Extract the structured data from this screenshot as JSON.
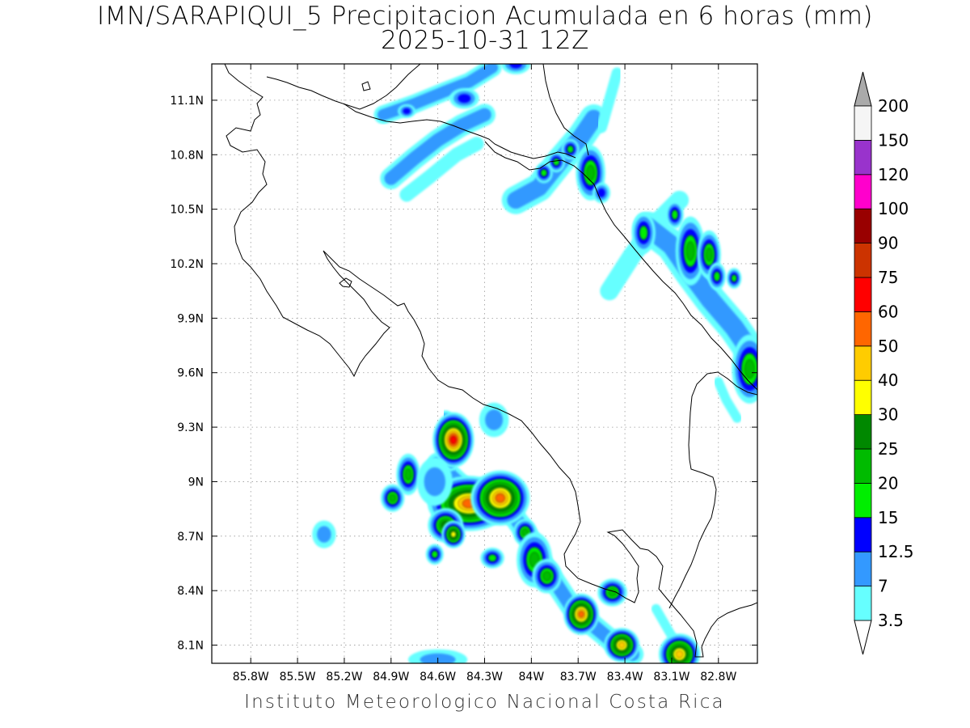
{
  "title": {
    "line1": "IMN/SARAPIQUI_5 Precipitacion Acumulada en 6 horas (mm)",
    "line2": "2025-10-31 12Z"
  },
  "footer": "Instituto Meteorologico Nacional Costa Rica",
  "map": {
    "lon_range": [
      -86.05,
      -82.55
    ],
    "lat_range": [
      8.0,
      11.3
    ],
    "lon_ticks": [
      {
        "value": -85.8,
        "label": "85.8W"
      },
      {
        "value": -85.5,
        "label": "85.5W"
      },
      {
        "value": -85.2,
        "label": "85.2W"
      },
      {
        "value": -84.9,
        "label": "84.9W"
      },
      {
        "value": -84.6,
        "label": "84.6W"
      },
      {
        "value": -84.3,
        "label": "84.3W"
      },
      {
        "value": -84.0,
        "label": "84W"
      },
      {
        "value": -83.7,
        "label": "83.7W"
      },
      {
        "value": -83.4,
        "label": "83.4W"
      },
      {
        "value": -83.1,
        "label": "83.1W"
      },
      {
        "value": -82.8,
        "label": "82.8W"
      }
    ],
    "lat_ticks": [
      {
        "value": 8.1,
        "label": "8.1N"
      },
      {
        "value": 8.4,
        "label": "8.4N"
      },
      {
        "value": 8.7,
        "label": "8.7N"
      },
      {
        "value": 9.0,
        "label": "9N"
      },
      {
        "value": 9.3,
        "label": "9.3N"
      },
      {
        "value": 9.6,
        "label": "9.6N"
      },
      {
        "value": 9.9,
        "label": "9.9N"
      },
      {
        "value": 10.2,
        "label": "10.2N"
      },
      {
        "value": 10.5,
        "label": "10.5N"
      },
      {
        "value": 10.8,
        "label": "10.8N"
      },
      {
        "value": 11.1,
        "label": "11.1N"
      }
    ],
    "grid": true
  },
  "colorbar": {
    "labels": [
      "3.5",
      "7",
      "12.5",
      "15",
      "20",
      "25",
      "30",
      "40",
      "50",
      "60",
      "75",
      "90",
      "100",
      "120",
      "150",
      "200"
    ],
    "colors": [
      "#66ffff",
      "#3399ff",
      "#0000ff",
      "#00ee00",
      "#00bb00",
      "#008800",
      "#ffff00",
      "#ffcc00",
      "#ff6600",
      "#ff0000",
      "#cc3300",
      "#990000",
      "#ff00cc",
      "#9933cc",
      "#f5f5f5"
    ],
    "below_color": "#ffffff",
    "above_color": "#aaaaaa"
  },
  "precip_cells": [
    {
      "lon": -84.4,
      "lat": 8.88,
      "rx_deg": 0.14,
      "ry_deg": 0.08,
      "value": 55
    },
    {
      "lon": -84.2,
      "lat": 8.91,
      "rx_deg": 0.1,
      "ry_deg": 0.08,
      "value": 50
    },
    {
      "lon": -84.5,
      "lat": 9.23,
      "rx_deg": 0.07,
      "ry_deg": 0.08,
      "value": 62
    },
    {
      "lon": -83.68,
      "lat": 8.27,
      "rx_deg": 0.06,
      "ry_deg": 0.06,
      "value": 55
    },
    {
      "lon": -83.42,
      "lat": 8.1,
      "rx_deg": 0.06,
      "ry_deg": 0.05,
      "value": 45
    },
    {
      "lon": -83.05,
      "lat": 8.05,
      "rx_deg": 0.07,
      "ry_deg": 0.06,
      "value": 40
    },
    {
      "lon": -84.55,
      "lat": 8.76,
      "rx_deg": 0.06,
      "ry_deg": 0.05,
      "value": 25
    },
    {
      "lon": -84.5,
      "lat": 8.71,
      "rx_deg": 0.04,
      "ry_deg": 0.04,
      "value": 30
    },
    {
      "lon": -84.04,
      "lat": 8.72,
      "rx_deg": 0.04,
      "ry_deg": 0.04,
      "value": 20
    },
    {
      "lon": -83.98,
      "lat": 8.57,
      "rx_deg": 0.06,
      "ry_deg": 0.08,
      "value": 22
    },
    {
      "lon": -83.9,
      "lat": 8.48,
      "rx_deg": 0.05,
      "ry_deg": 0.05,
      "value": 20
    },
    {
      "lon": -84.79,
      "lat": 9.04,
      "rx_deg": 0.04,
      "ry_deg": 0.06,
      "value": 21
    },
    {
      "lon": -84.89,
      "lat": 8.91,
      "rx_deg": 0.04,
      "ry_deg": 0.04,
      "value": 20
    },
    {
      "lon": -84.61,
      "lat": 9.01,
      "rx_deg": 0.04,
      "ry_deg": 0.04,
      "value": 16
    },
    {
      "lon": -84.25,
      "lat": 8.58,
      "rx_deg": 0.04,
      "ry_deg": 0.03,
      "value": 16
    },
    {
      "lon": -84.62,
      "lat": 8.6,
      "rx_deg": 0.03,
      "ry_deg": 0.03,
      "value": 16
    },
    {
      "lon": -84.24,
      "lat": 9.34,
      "rx_deg": 0.05,
      "ry_deg": 0.05,
      "value": 10
    },
    {
      "lon": -83.48,
      "lat": 8.39,
      "rx_deg": 0.05,
      "ry_deg": 0.04,
      "value": 20
    },
    {
      "lon": -83.62,
      "lat": 10.7,
      "rx_deg": 0.05,
      "ry_deg": 0.08,
      "value": 22
    },
    {
      "lon": -82.98,
      "lat": 10.27,
      "rx_deg": 0.05,
      "ry_deg": 0.1,
      "value": 21
    },
    {
      "lon": -82.86,
      "lat": 10.25,
      "rx_deg": 0.04,
      "ry_deg": 0.07,
      "value": 21
    },
    {
      "lon": -82.6,
      "lat": 9.62,
      "rx_deg": 0.06,
      "ry_deg": 0.1,
      "value": 22
    },
    {
      "lon": -83.28,
      "lat": 10.37,
      "rx_deg": 0.04,
      "ry_deg": 0.06,
      "value": 18
    },
    {
      "lon": -83.08,
      "lat": 10.47,
      "rx_deg": 0.03,
      "ry_deg": 0.04,
      "value": 16
    },
    {
      "lon": -82.81,
      "lat": 10.13,
      "rx_deg": 0.03,
      "ry_deg": 0.04,
      "value": 16
    },
    {
      "lon": -82.7,
      "lat": 10.12,
      "rx_deg": 0.025,
      "ry_deg": 0.03,
      "value": 16
    },
    {
      "lon": -83.75,
      "lat": 10.83,
      "rx_deg": 0.03,
      "ry_deg": 0.03,
      "value": 16
    },
    {
      "lon": -83.84,
      "lat": 10.76,
      "rx_deg": 0.03,
      "ry_deg": 0.03,
      "value": 16
    },
    {
      "lon": -83.92,
      "lat": 10.7,
      "rx_deg": 0.03,
      "ry_deg": 0.03,
      "value": 16
    },
    {
      "lon": -83.55,
      "lat": 10.59,
      "rx_deg": 0.03,
      "ry_deg": 0.03,
      "value": 14
    },
    {
      "lon": -84.43,
      "lat": 11.11,
      "rx_deg": 0.05,
      "ry_deg": 0.03,
      "value": 13
    },
    {
      "lon": -84.1,
      "lat": 11.3,
      "rx_deg": 0.05,
      "ry_deg": 0.03,
      "value": 13
    },
    {
      "lon": -84.8,
      "lat": 11.04,
      "rx_deg": 0.03,
      "ry_deg": 0.02,
      "value": 13
    },
    {
      "lon": -84.62,
      "lat": 9.0,
      "rx_deg": 0.06,
      "ry_deg": 0.07,
      "value": 8
    },
    {
      "lon": -85.33,
      "lat": 8.71,
      "rx_deg": 0.04,
      "ry_deg": 0.04,
      "value": 8
    },
    {
      "lon": -84.6,
      "lat": 8.02,
      "rx_deg": 0.1,
      "ry_deg": 0.03,
      "value": 10
    }
  ],
  "precip_bands": [
    {
      "path": [
        [
          -84.9,
          10.67
        ],
        [
          -84.75,
          10.78
        ],
        [
          -84.6,
          10.88
        ],
        [
          -84.45,
          10.96
        ],
        [
          -84.3,
          11.02
        ]
      ],
      "width_deg": 0.14,
      "value": 8
    },
    {
      "path": [
        [
          -84.8,
          10.58
        ],
        [
          -84.65,
          10.68
        ],
        [
          -84.48,
          10.8
        ],
        [
          -84.35,
          10.86
        ]
      ],
      "width_deg": 0.09,
      "value": 5
    },
    {
      "path": [
        [
          -84.95,
          11.02
        ],
        [
          -84.75,
          11.08
        ],
        [
          -84.55,
          11.15
        ],
        [
          -84.4,
          11.2
        ],
        [
          -84.25,
          11.28
        ]
      ],
      "width_deg": 0.12,
      "value": 8
    },
    {
      "path": [
        [
          -84.1,
          10.55
        ],
        [
          -83.95,
          10.62
        ],
        [
          -83.8,
          10.78
        ],
        [
          -83.68,
          10.9
        ],
        [
          -83.6,
          11.0
        ]
      ],
      "width_deg": 0.18,
      "value": 8
    },
    {
      "path": [
        [
          -83.5,
          10.05
        ],
        [
          -83.35,
          10.25
        ],
        [
          -83.2,
          10.42
        ],
        [
          -83.05,
          10.55
        ]
      ],
      "width_deg": 0.12,
      "value": 6
    },
    {
      "path": [
        [
          -83.25,
          10.4
        ],
        [
          -83.1,
          10.3
        ],
        [
          -82.98,
          10.15
        ],
        [
          -82.85,
          10.0
        ],
        [
          -82.7,
          9.85
        ],
        [
          -82.58,
          9.7
        ]
      ],
      "width_deg": 0.2,
      "value": 8
    },
    {
      "path": [
        [
          -84.6,
          9.1
        ],
        [
          -84.45,
          8.98
        ],
        [
          -84.3,
          8.9
        ],
        [
          -84.12,
          8.82
        ],
        [
          -84.02,
          8.7
        ],
        [
          -83.95,
          8.58
        ],
        [
          -83.85,
          8.45
        ],
        [
          -83.75,
          8.32
        ],
        [
          -83.62,
          8.22
        ],
        [
          -83.48,
          8.12
        ],
        [
          -83.35,
          8.05
        ]
      ],
      "width_deg": 0.14,
      "value": 8
    },
    {
      "path": [
        [
          -84.55,
          9.35
        ],
        [
          -84.5,
          9.25
        ],
        [
          -84.52,
          9.1
        ]
      ],
      "width_deg": 0.1,
      "value": 8
    },
    {
      "path": [
        [
          -83.55,
          10.95
        ],
        [
          -83.5,
          11.1
        ],
        [
          -83.45,
          11.25
        ]
      ],
      "width_deg": 0.07,
      "value": 5
    },
    {
      "path": [
        [
          -83.2,
          8.3
        ],
        [
          -83.12,
          8.18
        ],
        [
          -83.05,
          8.08
        ]
      ],
      "width_deg": 0.06,
      "value": 5
    },
    {
      "path": [
        [
          -82.8,
          9.55
        ],
        [
          -82.75,
          9.45
        ],
        [
          -82.68,
          9.35
        ]
      ],
      "width_deg": 0.06,
      "value": 5
    }
  ]
}
